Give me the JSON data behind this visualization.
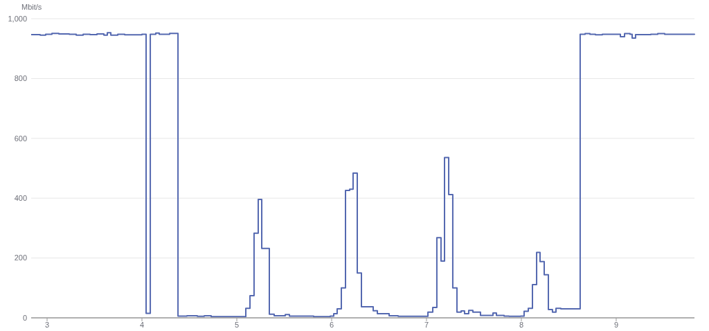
{
  "chart_data": {
    "type": "step",
    "ylabel": "Mbit/s",
    "x": [
      2.832,
      2.927,
      2.985,
      3.051,
      3.124,
      3.234,
      3.307,
      3.38,
      3.453,
      3.526,
      3.599,
      3.635,
      3.672,
      3.745,
      3.818,
      4.0,
      4.044,
      4.088,
      4.146,
      4.182,
      4.292,
      4.38,
      4.474,
      4.584,
      4.657,
      4.73,
      5.095,
      5.139,
      5.182,
      5.226,
      5.263,
      5.343,
      5.394,
      5.511,
      5.555,
      5.81,
      5.985,
      6.022,
      6.058,
      6.102,
      6.146,
      6.19,
      6.226,
      6.27,
      6.314,
      6.438,
      6.482,
      6.606,
      6.701,
      7.015,
      7.066,
      7.109,
      7.153,
      7.19,
      7.234,
      7.277,
      7.321,
      7.365,
      7.401,
      7.445,
      7.489,
      7.569,
      7.701,
      7.737,
      7.818,
      7.869,
      7.993,
      8.029,
      8.073,
      8.117,
      8.161,
      8.197,
      8.241,
      8.285,
      8.328,
      8.365,
      8.416,
      8.62,
      8.672,
      8.723,
      8.781,
      8.854,
      9.044,
      9.088,
      9.146,
      9.168,
      9.204,
      9.365,
      9.438,
      9.511,
      9.825
    ],
    "series": [
      {
        "color": "#5468b0",
        "values": [
          947,
          945,
          948,
          951,
          949,
          948,
          945,
          948,
          947,
          949,
          945,
          953,
          945,
          948,
          946,
          948,
          15,
          948,
          952,
          948,
          951,
          6,
          7,
          5,
          7,
          4,
          32,
          74,
          283,
          396,
          232,
          12,
          7,
          11,
          6,
          4,
          6,
          14,
          30,
          100,
          426,
          430,
          484,
          150,
          37,
          24,
          14,
          7,
          5,
          19,
          35,
          268,
          190,
          536,
          412,
          100,
          19,
          23,
          14,
          25,
          19,
          8,
          16,
          8,
          6,
          5,
          6,
          22,
          32,
          111,
          219,
          188,
          144,
          28,
          19,
          32,
          30,
          948,
          950,
          948,
          946,
          948,
          940,
          950,
          948,
          935,
          947,
          948,
          950,
          948,
          946
        ]
      }
    ],
    "xlim": [
      2.832,
      9.825
    ],
    "xticks": [
      3,
      4,
      5,
      6,
      7,
      8,
      9
    ],
    "ylim": [
      0,
      1000
    ],
    "yticks": [
      0,
      200,
      400,
      600,
      800,
      {
        "value": 1000,
        "label": "1,000"
      }
    ],
    "grid": "y",
    "line_style": "solid",
    "marker": "none"
  }
}
